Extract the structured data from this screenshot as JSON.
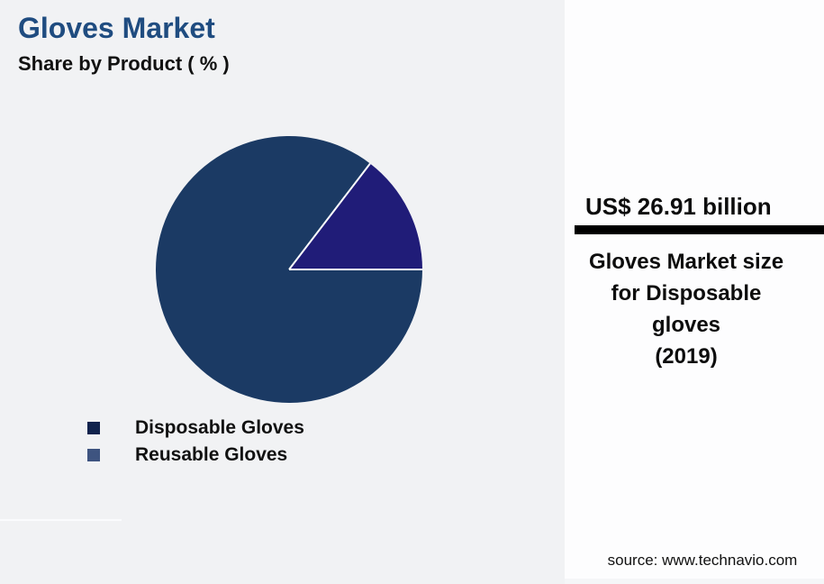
{
  "header": {
    "title": "Gloves Market",
    "subtitle": "Share by Product ( % )",
    "title_color": "#1f4c80"
  },
  "chart_data": {
    "type": "pie",
    "title": "Gloves Market",
    "subtitle": "Share by Product ( % )",
    "unit": "%",
    "categories": [
      "Disposable Gloves",
      "Reusable Gloves"
    ],
    "values": [
      85.4,
      14.6
    ],
    "slice_colors": [
      "#1b3a64",
      "#201c78"
    ],
    "slice_divider_color": "#ffffff",
    "start_angle_deg_from_east": 0,
    "direction": "clockwise",
    "legend_position": "bottom-left",
    "legend": [
      {
        "label": "Disposable Gloves",
        "color": "#11234d"
      },
      {
        "label": "Reusable Gloves",
        "color": "#3e5480"
      }
    ]
  },
  "side_panel": {
    "value": "US$ 26.91 billion",
    "description": "Gloves Market size\nfor Disposable\ngloves\n(2019)",
    "source": "source: www.technavio.com",
    "bar_color": "#000000",
    "background": "#fdfdfe"
  },
  "colors": {
    "canvas_background": "#f1f2f4",
    "text": "#111111"
  }
}
